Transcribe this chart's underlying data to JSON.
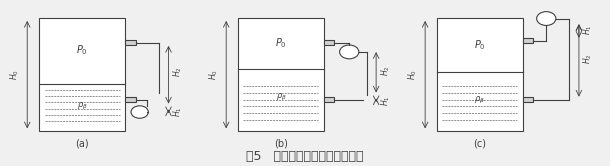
{
  "title": "图5   双法兰差压变送器安装位置",
  "title_fontsize": 9,
  "bg_color": "#f5f5f5",
  "fg_color": "#404040",
  "line_color": "#404040",
  "subfig_labels": [
    "(a)",
    "(b)",
    "(c)"
  ],
  "tank_labels": [
    "P_0",
    "P_0",
    "P_0"
  ],
  "rho_labels": [
    "ρ  β",
    "ρ  β",
    "ρ  β"
  ],
  "H0_label": "H_0",
  "H1_label": "H_1",
  "H2_label": "H_2"
}
